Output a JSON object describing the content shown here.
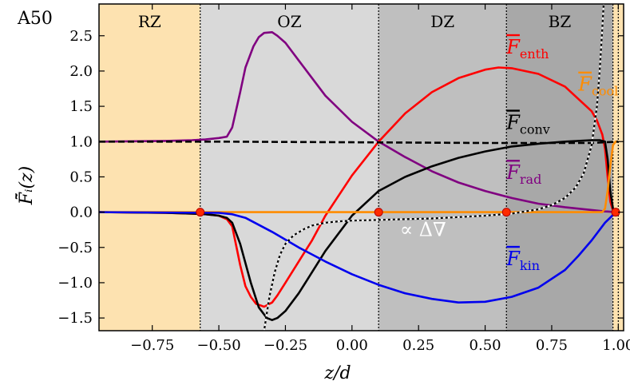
{
  "chart_data": {
    "type": "line",
    "panel_label": "A50",
    "xlabel": "z/d",
    "ylabel": "F̃̄ᵢ(z)",
    "xlim": [
      -0.95,
      1.02
    ],
    "ylim": [
      -1.68,
      2.95
    ],
    "xticks": [
      -0.75,
      -0.5,
      -0.25,
      0.0,
      0.25,
      0.5,
      0.75,
      1.0
    ],
    "xtick_labels": [
      "−0.75",
      "−0.50",
      "−0.25",
      "0.00",
      "0.25",
      "0.50",
      "0.75",
      "1.00"
    ],
    "yticks": [
      -1.5,
      -1.0,
      -0.5,
      0.0,
      0.5,
      1.0,
      1.5,
      2.0,
      2.5
    ],
    "ytick_labels": [
      "−1.5",
      "−1.0",
      "−0.5",
      "0.0",
      "0.5",
      "1.0",
      "1.5",
      "2.0",
      "2.5"
    ],
    "zones": [
      {
        "name": "RZ",
        "x0": -0.95,
        "x1": -0.57,
        "color": "#fde2b0"
      },
      {
        "name": "OZ",
        "x0": -0.57,
        "x1": 0.1,
        "color": "#d9d9d9"
      },
      {
        "name": "DZ",
        "x0": 0.1,
        "x1": 0.58,
        "color": "#bfbfbf"
      },
      {
        "name": "BZ",
        "x0": 0.58,
        "x1": 0.98,
        "color": "#a8a8a8"
      },
      {
        "name": "",
        "x0": 0.98,
        "x1": 1.02,
        "color": "#fde2b0"
      }
    ],
    "boundaries": [
      -0.57,
      0.1,
      0.58,
      0.98,
      1.0
    ],
    "markers": [
      [
        -0.57,
        0.0
      ],
      [
        0.1,
        0.0
      ],
      [
        0.58,
        0.0
      ],
      [
        0.99,
        0.0
      ]
    ],
    "marker_color": "#ff2a00",
    "series": [
      {
        "name": "F_rad",
        "label_main": "F",
        "label_sub": "rad",
        "color": "#800080",
        "style": "solid",
        "label_at": [
          0.58,
          0.47
        ],
        "x": [
          -0.95,
          -0.7,
          -0.6,
          -0.55,
          -0.5,
          -0.47,
          -0.45,
          -0.42,
          -0.4,
          -0.37,
          -0.35,
          -0.33,
          -0.3,
          -0.28,
          -0.25,
          -0.2,
          -0.1,
          0.0,
          0.1,
          0.2,
          0.3,
          0.4,
          0.5,
          0.6,
          0.7,
          0.8,
          0.9,
          0.95,
          1.0
        ],
        "y": [
          1.0,
          1.01,
          1.02,
          1.03,
          1.05,
          1.07,
          1.2,
          1.7,
          2.05,
          2.35,
          2.48,
          2.54,
          2.55,
          2.5,
          2.4,
          2.15,
          1.65,
          1.28,
          1.0,
          0.78,
          0.58,
          0.42,
          0.3,
          0.2,
          0.12,
          0.07,
          0.03,
          0.01,
          0.0
        ]
      },
      {
        "name": "F_enth",
        "label_main": "F",
        "label_sub": "enth",
        "color": "#ff0000",
        "style": "solid",
        "label_at": [
          0.58,
          2.25
        ],
        "x": [
          -0.95,
          -0.7,
          -0.6,
          -0.55,
          -0.5,
          -0.47,
          -0.45,
          -0.42,
          -0.4,
          -0.38,
          -0.36,
          -0.33,
          -0.3,
          -0.28,
          -0.25,
          -0.2,
          -0.15,
          -0.1,
          0.0,
          0.1,
          0.2,
          0.3,
          0.4,
          0.5,
          0.55,
          0.6,
          0.7,
          0.8,
          0.9,
          0.92,
          0.94,
          0.95,
          0.96,
          0.97,
          0.98,
          1.0
        ],
        "y": [
          0.0,
          -0.01,
          -0.02,
          -0.03,
          -0.05,
          -0.1,
          -0.2,
          -0.75,
          -1.05,
          -1.2,
          -1.3,
          -1.34,
          -1.28,
          -1.18,
          -1.0,
          -0.7,
          -0.4,
          -0.05,
          0.52,
          1.0,
          1.4,
          1.7,
          1.9,
          2.02,
          2.05,
          2.04,
          1.96,
          1.78,
          1.43,
          1.3,
          1.1,
          0.9,
          0.5,
          0.15,
          0.02,
          0.0
        ]
      },
      {
        "name": "F_conv",
        "label_main": "F",
        "label_sub": "conv",
        "color": "#000000",
        "style": "solid",
        "label_at": [
          0.58,
          1.18
        ],
        "x": [
          -0.95,
          -0.7,
          -0.6,
          -0.55,
          -0.5,
          -0.47,
          -0.45,
          -0.42,
          -0.38,
          -0.35,
          -0.32,
          -0.3,
          -0.28,
          -0.25,
          -0.2,
          -0.1,
          0.0,
          0.1,
          0.2,
          0.3,
          0.4,
          0.5,
          0.6,
          0.7,
          0.8,
          0.9,
          0.93,
          0.95,
          0.96,
          0.97,
          0.98,
          1.0
        ],
        "y": [
          0.0,
          -0.01,
          -0.02,
          -0.03,
          -0.05,
          -0.08,
          -0.15,
          -0.45,
          -1.0,
          -1.35,
          -1.5,
          -1.53,
          -1.5,
          -1.4,
          -1.15,
          -0.55,
          -0.05,
          0.3,
          0.5,
          0.65,
          0.77,
          0.86,
          0.93,
          0.97,
          1.0,
          1.02,
          1.02,
          1.0,
          0.75,
          0.3,
          0.05,
          0.0
        ]
      },
      {
        "name": "F_cool",
        "label_main": "F",
        "label_sub": "cool",
        "color": "#ff8c00",
        "style": "solid",
        "label_at": [
          0.85,
          1.72
        ],
        "x": [
          -0.95,
          -0.5,
          0.0,
          0.5,
          0.9,
          0.94,
          0.95,
          0.96,
          0.97,
          0.98,
          0.99,
          1.0
        ],
        "y": [
          0.0,
          0.0,
          0.0,
          0.0,
          0.0,
          0.0,
          0.05,
          0.3,
          0.65,
          0.95,
          1.0,
          1.0
        ]
      },
      {
        "name": "F_kin",
        "label_main": "F",
        "label_sub": "kin",
        "color": "#0000ee",
        "style": "solid",
        "label_at": [
          0.58,
          -0.75
        ],
        "x": [
          -0.95,
          -0.5,
          -0.45,
          -0.4,
          -0.3,
          -0.2,
          -0.1,
          0.0,
          0.1,
          0.2,
          0.3,
          0.4,
          0.5,
          0.6,
          0.7,
          0.8,
          0.85,
          0.9,
          0.95,
          0.98,
          1.0
        ],
        "y": [
          0.0,
          -0.01,
          -0.03,
          -0.08,
          -0.28,
          -0.5,
          -0.7,
          -0.88,
          -1.03,
          -1.15,
          -1.23,
          -1.28,
          -1.27,
          -1.2,
          -1.07,
          -0.82,
          -0.62,
          -0.4,
          -0.15,
          -0.04,
          0.0
        ]
      },
      {
        "name": "F_total",
        "label_main": "",
        "label_sub": "",
        "color": "#000000",
        "style": "dashed",
        "label_at": null,
        "x": [
          -0.95,
          -0.5,
          0.0,
          0.5,
          0.9,
          0.95,
          1.0
        ],
        "y": [
          1.0,
          1.0,
          0.99,
          0.98,
          0.98,
          0.99,
          1.0
        ]
      },
      {
        "name": "delta_nabla",
        "label_main": "∝ Δ∇",
        "label_sub": "",
        "color": "#ffffff",
        "style": "dotted",
        "label_at": [
          0.18,
          -0.34
        ],
        "x": [
          -0.33,
          -0.31,
          -0.29,
          -0.27,
          -0.25,
          -0.22,
          -0.18,
          -0.15,
          -0.1,
          -0.05,
          0.0,
          0.1,
          0.2,
          0.3,
          0.4,
          0.5,
          0.6,
          0.7,
          0.75,
          0.8,
          0.84,
          0.87,
          0.9,
          0.92,
          0.93,
          0.94,
          0.945
        ],
        "y": [
          -1.68,
          -1.2,
          -0.85,
          -0.6,
          -0.45,
          -0.33,
          -0.24,
          -0.19,
          -0.15,
          -0.13,
          -0.12,
          -0.11,
          -0.1,
          -0.09,
          -0.07,
          -0.05,
          -0.02,
          0.04,
          0.1,
          0.2,
          0.35,
          0.55,
          0.95,
          1.5,
          2.0,
          2.6,
          2.95
        ]
      }
    ]
  }
}
